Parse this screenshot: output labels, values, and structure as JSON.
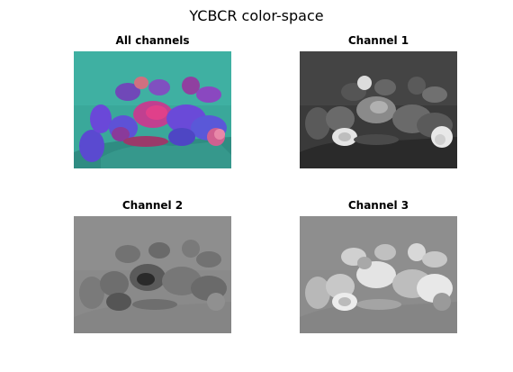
{
  "figure": {
    "title": "YCBCR color-space"
  },
  "chart_data": [
    {
      "type": "image",
      "title": "All channels",
      "description": "Composite YCbCr rendering of a pile of peppers, teal/magenta false color",
      "colors": {
        "background": "#3aa89a",
        "objects": "#6a4ad8",
        "highlight": "#e0408a"
      }
    },
    {
      "type": "image",
      "title": "Channel 1",
      "description": "Luminance (Y) grayscale of peppers",
      "colors": {
        "background": "#3a3a3a",
        "objects": "#7a7a7a",
        "highlight": "#e8e8e8"
      }
    },
    {
      "type": "image",
      "title": "Channel 2",
      "description": "Cb chroma grayscale of peppers",
      "colors": {
        "background": "#8a8a8a",
        "objects": "#6a6a6a",
        "highlight": "#2a2a2a"
      }
    },
    {
      "type": "image",
      "title": "Channel 3",
      "description": "Cr chroma grayscale of peppers",
      "colors": {
        "background": "#8c8c8c",
        "objects": "#b0b0b0",
        "highlight": "#ececec"
      }
    }
  ]
}
